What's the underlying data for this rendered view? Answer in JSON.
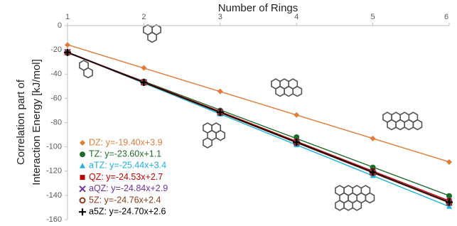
{
  "chart_data": {
    "type": "scatter",
    "x_label": "Number of Rings",
    "y_label_lines": [
      "Correlation part of",
      "Interaction Energy  [kJ/mol]"
    ],
    "x": [
      1,
      2,
      3,
      4,
      5,
      6
    ],
    "xlim": [
      1,
      6
    ],
    "xticks": [
      1,
      2,
      3,
      4,
      5,
      6
    ],
    "ylim": [
      -160,
      0
    ],
    "yticks": [
      0,
      -20,
      -40,
      -60,
      -80,
      -100,
      -120,
      -140,
      -160
    ],
    "trendline": true,
    "legend": "lower-left",
    "series": [
      {
        "name": "DZ: y=-19.40x+3.9",
        "color": "#e07b39",
        "marker": "diamond",
        "values": [
          -16,
          -34.9,
          -54.3,
          -73.7,
          -93.1,
          -112.5
        ]
      },
      {
        "name": "TZ: y=-23.60x+1.1",
        "color": "#1e6b2a",
        "marker": "circle",
        "values": [
          -22.5,
          -46.1,
          -70,
          -92,
          -117,
          -140.5
        ]
      },
      {
        "name": "aTZ: y=-25.44x+3.4",
        "color": "#1ab0e0",
        "marker": "triangle",
        "values": [
          -22,
          -47.5,
          -73,
          -98.4,
          -123.8,
          -149.2
        ]
      },
      {
        "name": "QZ: y=-24.53x+2.7",
        "color": "#c00000",
        "marker": "square",
        "values": [
          -21.8,
          -46.4,
          -70.9,
          -95.4,
          -120,
          -144.5
        ]
      },
      {
        "name": "aQZ: y=-24.84x+2.9",
        "color": "#7030a0",
        "marker": "x",
        "values": [
          -21.9,
          -46.8,
          -71.6,
          -96.5,
          -121.3,
          -146.1
        ]
      },
      {
        "name": "5Z: y=-24.76x+2.4",
        "color": "#8b3a1a",
        "marker": "ring",
        "values": [
          -22.4,
          -47.1,
          -71.9,
          -96.6,
          -121.4,
          -146.2
        ]
      },
      {
        "name": "a5Z: y=-24.70x+2.6",
        "color": "#000000",
        "marker": "plus",
        "values": [
          -22.1,
          -46.8,
          -71.5,
          -96.2,
          -120.9,
          -145.6
        ]
      }
    ]
  }
}
